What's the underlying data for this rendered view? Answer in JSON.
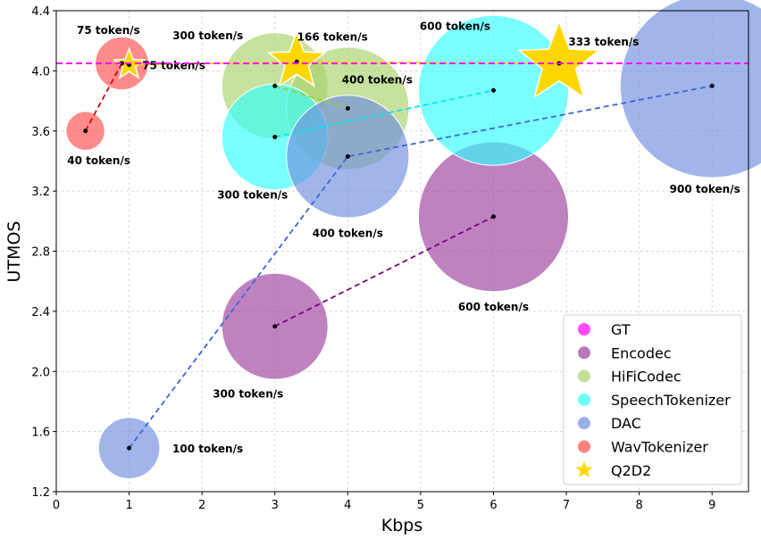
{
  "chart_data": {
    "type": "scatter",
    "xlabel": "Kbps",
    "ylabel": "UTMOS",
    "xlim": [
      0,
      9.5
    ],
    "ylim": [
      1.2,
      4.4
    ],
    "xticks": [
      0,
      1,
      2,
      3,
      4,
      5,
      6,
      7,
      8,
      9
    ],
    "yticks": [
      "1.2",
      "1.6",
      "2.0",
      "2.4",
      "2.8",
      "3.2",
      "3.6",
      "4.0",
      "4.4"
    ],
    "grid": true,
    "legend_position": "lower-right",
    "bubble_size_encodes": "token/s",
    "reference_line": {
      "name": "GT",
      "y": 4.05,
      "color": "#ff00ff"
    },
    "series": [
      {
        "name": "Encodec",
        "color": "#9b3fa0",
        "line_color": "#800080",
        "points": [
          {
            "x": 3,
            "y": 2.3,
            "tokens": 300,
            "label": "300 token/s"
          },
          {
            "x": 6,
            "y": 3.03,
            "tokens": 600,
            "label": "600 token/s"
          }
        ]
      },
      {
        "name": "HiFiCodec",
        "color": "#a8d26a",
        "line_color": "#9acd32",
        "points": [
          {
            "x": 3,
            "y": 3.9,
            "tokens": 300,
            "label": "300 token/s"
          },
          {
            "x": 4,
            "y": 3.75,
            "tokens": 400,
            "label": "400 token/s"
          }
        ]
      },
      {
        "name": "SpeechTokenizer",
        "color": "#33ffff",
        "line_color": "#00e5ee",
        "points": [
          {
            "x": 3,
            "y": 3.56,
            "tokens": 300,
            "label": "300 token/s"
          },
          {
            "x": 6,
            "y": 3.87,
            "tokens": 600,
            "label": "600 token/s"
          }
        ]
      },
      {
        "name": "DAC",
        "color": "#6f8ee0",
        "line_color": "#3e66d6",
        "points": [
          {
            "x": 1,
            "y": 1.49,
            "tokens": 100,
            "label": "100 token/s"
          },
          {
            "x": 4,
            "y": 3.43,
            "tokens": 400,
            "label": "400 token/s"
          },
          {
            "x": 9,
            "y": 3.9,
            "tokens": 900,
            "label": "900 token/s"
          }
        ]
      },
      {
        "name": "WavTokenizer",
        "color": "#ff4d4d",
        "line_color": "#e00000",
        "points": [
          {
            "x": 0.4,
            "y": 3.6,
            "tokens": 40,
            "label": "40 token/s"
          },
          {
            "x": 0.9,
            "y": 4.05,
            "tokens": 75,
            "label": "75 token/s"
          }
        ]
      },
      {
        "name": "Q2D2",
        "color": "#ffd700",
        "line_color": "#ffd700",
        "marker": "star",
        "points": [
          {
            "x": 1,
            "y": 4.04,
            "tokens": 75,
            "label": "75 token/s"
          },
          {
            "x": 3.3,
            "y": 4.06,
            "tokens": 166,
            "label": "166 token/s"
          },
          {
            "x": 6.9,
            "y": 4.05,
            "tokens": 333,
            "label": "333 token/s"
          }
        ]
      }
    ],
    "legend": [
      "GT",
      "Encodec",
      "HiFiCodec",
      "SpeechTokenizer",
      "DAC",
      "WavTokenizer",
      "Q2D2"
    ]
  }
}
